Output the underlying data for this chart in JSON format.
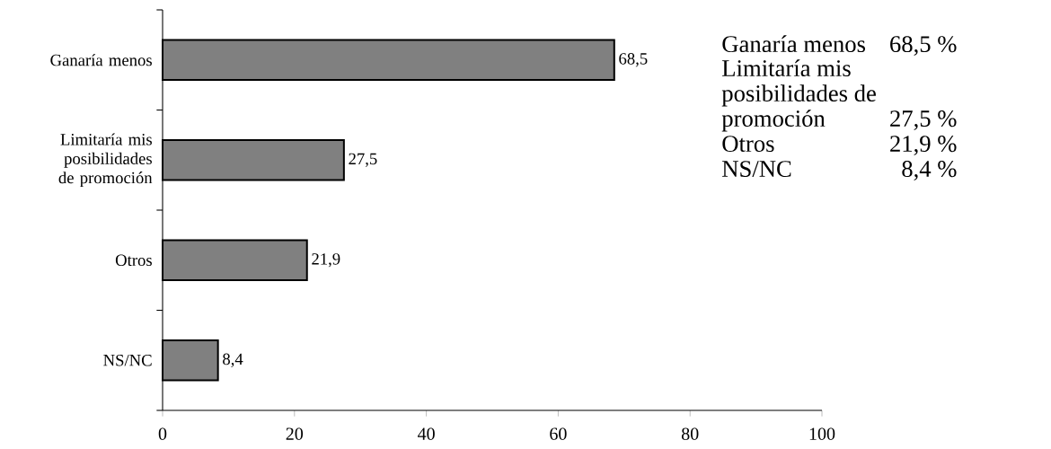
{
  "chart_data": {
    "type": "bar",
    "orientation": "horizontal",
    "categories": [
      "Ganaría menos",
      "Limitaría mis posibilidades de promoción",
      "Otros",
      "NS/NC"
    ],
    "values": [
      68.5,
      27.5,
      21.9,
      8.4
    ],
    "value_labels": [
      "68,5",
      "27,5",
      "21,9",
      "8,4"
    ],
    "color": "#808080",
    "xlim": [
      0,
      100
    ],
    "xticks": [
      0,
      20,
      40,
      60,
      80,
      100
    ],
    "grid": false,
    "legend": false,
    "annotations": [
      "Ganaría menos",
      "68,5 %",
      "Limitaría mis posibilidades de promoción",
      "27,5 %",
      "Otros",
      "21,9 %",
      "NS/NC",
      "8,4 %"
    ]
  }
}
